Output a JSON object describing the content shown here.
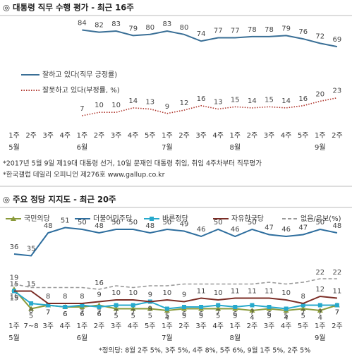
{
  "chart_data": [
    {
      "type": "line",
      "title": "◎ 대통령 직무 수행 평가 - 최근 16주",
      "categories": [
        "1주",
        "2주",
        "3주",
        "4주",
        "1주",
        "2주",
        "3주",
        "4주",
        "5주",
        "1주",
        "2주",
        "3주",
        "4주",
        "1주",
        "2주",
        "3주",
        "4주",
        "5주",
        "1주",
        "2주"
      ],
      "month_labels": [
        "5월",
        null,
        null,
        null,
        "6월",
        null,
        null,
        null,
        null,
        "7월",
        null,
        null,
        null,
        "8월",
        null,
        null,
        null,
        null,
        "9월",
        null
      ],
      "series": [
        {
          "name": "잘하고 있다(직무 긍정률)",
          "color": "#3a6f96",
          "dash": "solid",
          "marker": "none",
          "values": [
            null,
            null,
            null,
            null,
            84,
            82,
            83,
            79,
            80,
            83,
            80,
            74,
            77,
            77,
            78,
            78,
            79,
            76,
            72,
            69
          ]
        },
        {
          "name": "잘못하고 있다(부정률, %)",
          "color": "#b0382f",
          "dash": "dotted",
          "marker": "none",
          "values": [
            null,
            null,
            null,
            null,
            7,
            10,
            10,
            14,
            13,
            9,
            12,
            16,
            13,
            15,
            14,
            15,
            14,
            16,
            20,
            23
          ]
        }
      ],
      "ylim": [
        0,
        90
      ],
      "notes": [
        "*2017년 5월 9일 제19대 대통령 선거, 10일 문재인 대통령 취임, 취임 4주차부터 직무평가",
        "*한국갤럽 데일리 오피니언 제276호 www.gallup.co.kr"
      ]
    },
    {
      "type": "line",
      "title": "◎ 주요 정당 지지도 - 최근 20주",
      "categories": [
        "1주",
        "7~8",
        "3주",
        "4주",
        "1주",
        "2주",
        "3주",
        "4주",
        "5주",
        "1주",
        "2주",
        "3주",
        "4주",
        "1주",
        "2주",
        "3주",
        "4주",
        "5주",
        "1주",
        "2주"
      ],
      "month_labels": [
        "5월",
        null,
        null,
        null,
        "6월",
        null,
        null,
        null,
        null,
        "7월",
        null,
        null,
        null,
        "8월",
        null,
        null,
        null,
        null,
        "9월",
        null
      ],
      "series": [
        {
          "name": "국민의당",
          "color": "#8a9a3a",
          "dash": "solid",
          "marker": "triangle",
          "values": [
            16,
            5,
            7,
            6,
            6,
            7,
            5,
            5,
            5,
            4,
            5,
            5,
            5,
            5,
            4,
            5,
            4,
            5,
            4,
            7
          ]
        },
        {
          "name": "더불어민주당",
          "color": "#2e6e9e",
          "dash": "solid",
          "marker": "none",
          "values": [
            36,
            35,
            48,
            51,
            50,
            48,
            50,
            50,
            48,
            50,
            49,
            46,
            50,
            46,
            50,
            47,
            46,
            47,
            50,
            48
          ]
        },
        {
          "name": "바른정당",
          "color": "#27a9cc",
          "dash": "solid",
          "marker": "square",
          "values": [
            15,
            8,
            7,
            6,
            7,
            6,
            7,
            7,
            9,
            5,
            6,
            6,
            7,
            6,
            7,
            6,
            5,
            7,
            7,
            7
          ]
        },
        {
          "name": "자유한국당",
          "color": "#7b2d26",
          "dash": "solid",
          "marker": "none",
          "values": [
            15,
            15,
            8,
            8,
            8,
            9,
            10,
            10,
            9,
            10,
            9,
            11,
            10,
            11,
            11,
            11,
            10,
            8,
            12,
            11
          ]
        },
        {
          "name": "없음/유보(%)",
          "color": "#999999",
          "dash": "dashed",
          "marker": "none",
          "values": [
            19,
            17,
            17,
            17,
            17,
            16,
            18,
            17,
            18,
            18,
            19,
            19,
            19,
            19,
            19,
            20,
            19,
            20,
            22,
            22
          ],
          "value_labels": [
            "19",
            null,
            null,
            null,
            null,
            "16",
            null,
            null,
            null,
            null,
            null,
            null,
            null,
            null,
            null,
            null,
            null,
            null,
            "22",
            "22"
          ]
        }
      ],
      "ylim": [
        0,
        58
      ],
      "notes": [
        "*정의당: 8월 2주 5%, 3주 5%, 4주 8%, 5주 6%, 9월 1주 5%, 2주 5%"
      ]
    }
  ]
}
